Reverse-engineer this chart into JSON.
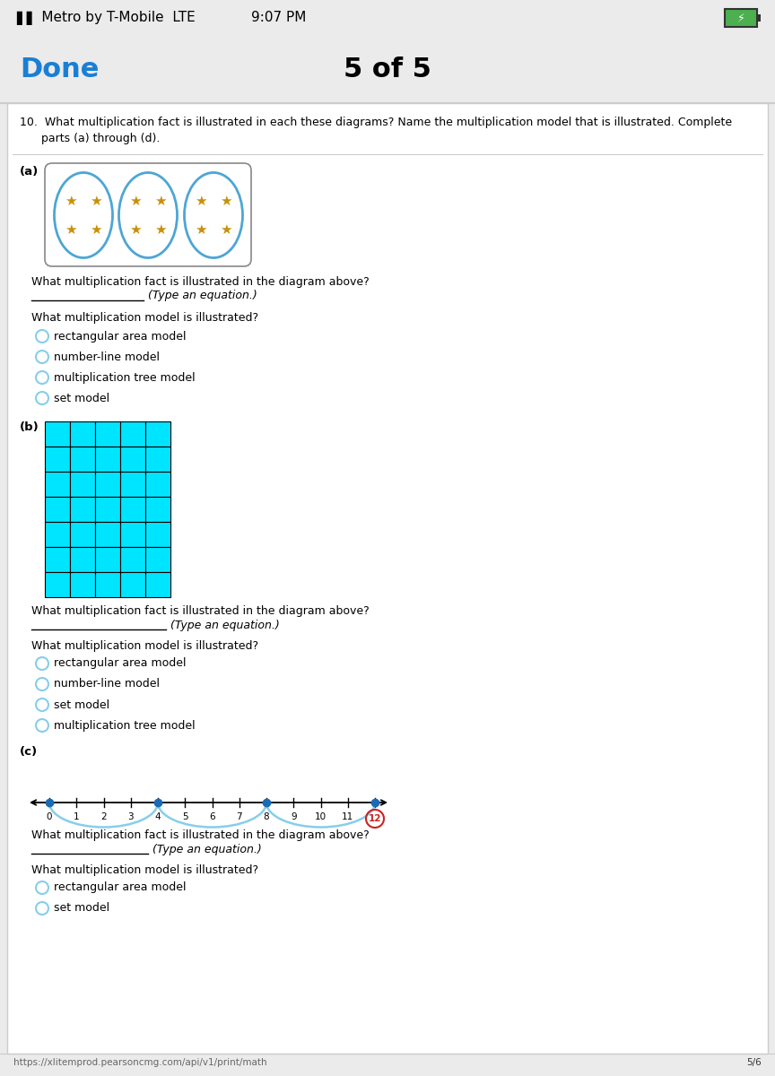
{
  "bg_color": "#ebebeb",
  "white": "#ffffff",
  "done_color": "#1a7fd4",
  "arc_color": "#87ceeb",
  "arc_dot_color": "#1a6bb5",
  "grid_color": "#00e5ff",
  "radio_circle_color": "#87ceeb",
  "number_line_color": "#000000",
  "footer_url": "https://xlitemprod.pearsoncmg.com/api/v1/print/math",
  "footer_page": "5/6",
  "grid_cols": 5,
  "grid_rows": 7,
  "radio_options_a": [
    "rectangular area model",
    "number-line model",
    "multiplication tree model",
    "set model"
  ],
  "radio_options_b": [
    "rectangular area model",
    "number-line model",
    "set model",
    "multiplication tree model"
  ],
  "radio_options_c": [
    "rectangular area model",
    "set model"
  ],
  "number_line_labels": [
    "0",
    "1",
    "2",
    "3",
    "4",
    "5",
    "6",
    "7",
    "8",
    "9",
    "10",
    "11",
    "12"
  ]
}
